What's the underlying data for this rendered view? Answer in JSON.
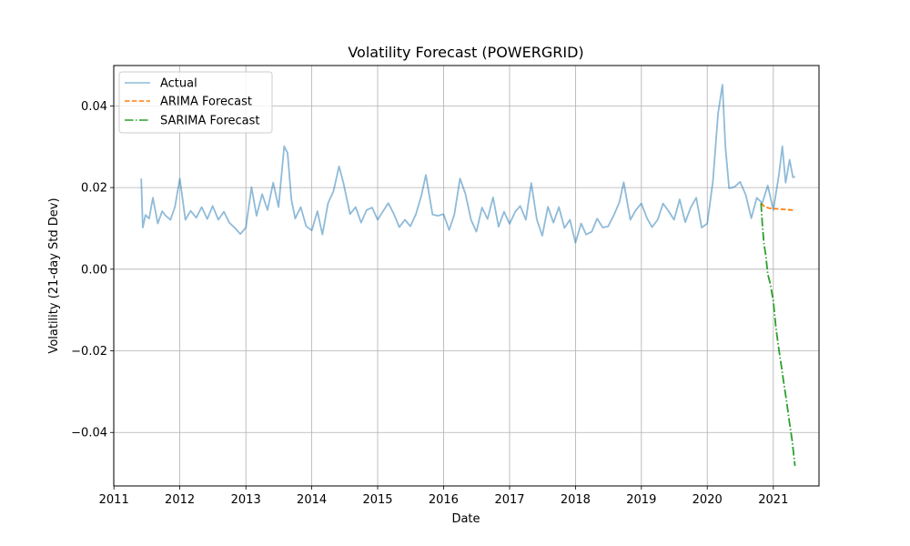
{
  "chart_data": {
    "type": "line",
    "title": "Volatility Forecast (POWERGRID)",
    "xlabel": "Date",
    "ylabel": "Volatility (21-day Std Dev)",
    "xlim": [
      "2010-12-31",
      "2021-09-11"
    ],
    "ylim": [
      -0.0531,
      0.0499
    ],
    "x_ticks": [
      "2011-01-01",
      "2012-01-01",
      "2013-01-01",
      "2014-01-01",
      "2015-01-01",
      "2016-01-01",
      "2017-01-01",
      "2018-01-01",
      "2019-01-01",
      "2020-01-01",
      "2021-01-01"
    ],
    "x_tick_labels": [
      "2011",
      "2012",
      "2013",
      "2014",
      "2015",
      "2016",
      "2017",
      "2018",
      "2019",
      "2020",
      "2021"
    ],
    "y_ticks": [
      -0.04,
      -0.02,
      0.0,
      0.02,
      0.04
    ],
    "y_tick_labels": [
      "−0.04",
      "−0.02",
      "0.00",
      "0.02",
      "0.04"
    ],
    "grid": true,
    "legend_position": "upper-left",
    "series": [
      {
        "name": "Actual",
        "color": "#1f77b4",
        "opacity": 0.5,
        "style": "solid",
        "x": [
          "2011-06-01",
          "2011-06-10",
          "2011-06-25",
          "2011-07-15",
          "2011-08-05",
          "2011-09-01",
          "2011-09-25",
          "2011-10-15",
          "2011-11-10",
          "2011-12-05",
          "2012-01-01",
          "2012-02-01",
          "2012-03-01",
          "2012-04-01",
          "2012-05-01",
          "2012-06-01",
          "2012-07-01",
          "2012-08-01",
          "2012-09-01",
          "2012-10-01",
          "2012-11-01",
          "2012-12-01",
          "2013-01-01",
          "2013-02-01",
          "2013-03-01",
          "2013-04-01",
          "2013-05-01",
          "2013-06-01",
          "2013-07-01",
          "2013-08-01",
          "2013-08-20",
          "2013-09-10",
          "2013-10-01",
          "2013-11-01",
          "2013-12-01",
          "2014-01-01",
          "2014-02-01",
          "2014-03-01",
          "2014-04-01",
          "2014-05-01",
          "2014-06-01",
          "2014-06-25",
          "2014-08-01",
          "2014-09-01",
          "2014-10-01",
          "2014-11-01",
          "2014-12-01",
          "2015-01-01",
          "2015-02-01",
          "2015-03-01",
          "2015-04-01",
          "2015-05-01",
          "2015-06-01",
          "2015-07-01",
          "2015-08-01",
          "2015-09-01",
          "2015-09-25",
          "2015-11-01",
          "2015-12-01",
          "2016-01-01",
          "2016-02-01",
          "2016-03-01",
          "2016-04-01",
          "2016-05-01",
          "2016-06-01",
          "2016-07-01",
          "2016-08-01",
          "2016-09-01",
          "2016-10-01",
          "2016-11-01",
          "2016-12-01",
          "2017-01-01",
          "2017-02-01",
          "2017-03-01",
          "2017-04-01",
          "2017-05-01",
          "2017-06-01",
          "2017-07-01",
          "2017-08-01",
          "2017-09-01",
          "2017-10-01",
          "2017-11-01",
          "2017-12-01",
          "2018-01-01",
          "2018-02-01",
          "2018-03-01",
          "2018-04-01",
          "2018-05-01",
          "2018-06-01",
          "2018-07-01",
          "2018-08-01",
          "2018-09-01",
          "2018-09-25",
          "2018-11-01",
          "2018-12-01",
          "2019-01-01",
          "2019-02-01",
          "2019-03-01",
          "2019-04-01",
          "2019-05-01",
          "2019-06-01",
          "2019-07-01",
          "2019-08-01",
          "2019-09-01",
          "2019-10-01",
          "2019-11-01",
          "2019-12-01",
          "2020-01-01",
          "2020-02-01",
          "2020-03-01",
          "2020-03-25",
          "2020-04-10",
          "2020-05-01",
          "2020-06-01",
          "2020-07-01",
          "2020-08-01",
          "2020-09-01",
          "2020-10-01",
          "2020-11-01",
          "2020-12-01",
          "2021-01-01",
          "2021-02-01",
          "2021-02-20",
          "2021-03-10",
          "2021-04-01",
          "2021-04-20",
          "2021-05-01"
        ],
        "values": [
          0.0222,
          0.0102,
          0.0133,
          0.0124,
          0.0175,
          0.0112,
          0.0142,
          0.0131,
          0.0121,
          0.0152,
          0.0222,
          0.0121,
          0.0143,
          0.0126,
          0.0152,
          0.0123,
          0.0155,
          0.0121,
          0.0141,
          0.0114,
          0.0101,
          0.0086,
          0.0102,
          0.0201,
          0.0131,
          0.0184,
          0.0145,
          0.0212,
          0.0152,
          0.0301,
          0.0285,
          0.0171,
          0.0124,
          0.0152,
          0.0105,
          0.0095,
          0.0142,
          0.0085,
          0.0162,
          0.0191,
          0.0252,
          0.0212,
          0.0135,
          0.0152,
          0.0114,
          0.0145,
          0.0151,
          0.0121,
          0.0143,
          0.0162,
          0.0135,
          0.0103,
          0.0121,
          0.0105,
          0.0135,
          0.0182,
          0.0231,
          0.0134,
          0.0131,
          0.0135,
          0.0096,
          0.0134,
          0.0222,
          0.0185,
          0.0121,
          0.0092,
          0.0151,
          0.0123,
          0.0176,
          0.0104,
          0.0141,
          0.0111,
          0.0141,
          0.0155,
          0.0121,
          0.0211,
          0.0121,
          0.0082,
          0.0153,
          0.0114,
          0.0152,
          0.0101,
          0.0121,
          0.0065,
          0.0112,
          0.0085,
          0.0092,
          0.0124,
          0.0102,
          0.0105,
          0.0132,
          0.0164,
          0.0213,
          0.0121,
          0.0145,
          0.0161,
          0.0125,
          0.0103,
          0.0121,
          0.0161,
          0.0142,
          0.0121,
          0.0171,
          0.0115,
          0.0151,
          0.0175,
          0.0102,
          0.0112,
          0.0215,
          0.0382,
          0.0452,
          0.0302,
          0.0198,
          0.0202,
          0.0214,
          0.0182,
          0.0125,
          0.0175,
          0.0162,
          0.0205,
          0.0145,
          0.0232,
          0.0301,
          0.0212,
          0.0268,
          0.0225,
          0.0227
        ]
      },
      {
        "name": "ARIMA Forecast",
        "color": "#ff7f0e",
        "style": "dashed",
        "x": [
          "2020-10-25",
          "2020-11-15",
          "2020-12-15",
          "2021-01-15",
          "2021-02-15",
          "2021-03-15",
          "2021-04-15",
          "2021-05-01"
        ],
        "values": [
          0.0162,
          0.0152,
          0.0149,
          0.0148,
          0.0147,
          0.0146,
          0.0145,
          0.0145
        ]
      },
      {
        "name": "SARIMA Forecast",
        "color": "#2ca02c",
        "style": "dashdot",
        "x": [
          "2020-10-25",
          "2020-11-01",
          "2020-11-10",
          "2020-11-20",
          "2020-12-01",
          "2020-12-15",
          "2021-01-01",
          "2021-01-15",
          "2021-02-01",
          "2021-02-15",
          "2021-03-01",
          "2021-03-15",
          "2021-04-01",
          "2021-04-15",
          "2021-05-01"
        ],
        "values": [
          0.0162,
          0.0112,
          0.0062,
          0.0035,
          -0.0012,
          -0.0035,
          -0.0078,
          -0.0142,
          -0.0198,
          -0.0238,
          -0.0282,
          -0.0322,
          -0.0378,
          -0.0418,
          -0.0482
        ]
      }
    ]
  }
}
